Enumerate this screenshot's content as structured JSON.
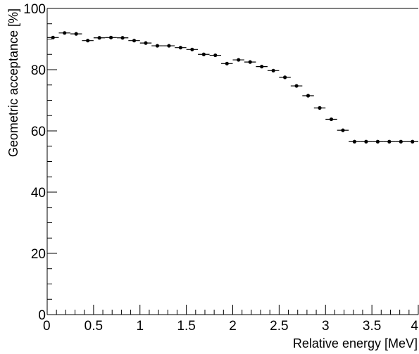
{
  "chart_data": {
    "type": "scatter",
    "title": "",
    "xlabel": "Relative energy [MeV]",
    "ylabel": "Geometric acceptance [%]",
    "xlim": [
      0,
      4
    ],
    "ylim": [
      0,
      100
    ],
    "x_ticks": [
      "0",
      "0.5",
      "1",
      "1.5",
      "2",
      "2.5",
      "3",
      "3.5",
      "4"
    ],
    "y_ticks": [
      "0",
      "20",
      "40",
      "60",
      "80",
      "100"
    ],
    "grid": false,
    "legend": "none",
    "bin_width": 0.125,
    "series": [
      {
        "x": [
          0.0625,
          0.1875,
          0.3125,
          0.4375,
          0.5625,
          0.6875,
          0.8125,
          0.9375,
          1.0625,
          1.1875,
          1.3125,
          1.4375,
          1.5625,
          1.6875,
          1.8125,
          1.9375,
          2.0625,
          2.1875,
          2.3125,
          2.4375,
          2.5625,
          2.6875,
          2.8125,
          2.9375,
          3.0625,
          3.1875,
          3.3125,
          3.4375,
          3.5625,
          3.6875,
          3.8125,
          3.9375
        ],
        "y": [
          90.5,
          92.0,
          91.7,
          89.5,
          90.4,
          90.5,
          90.4,
          89.5,
          88.7,
          87.8,
          87.8,
          87.2,
          86.6,
          85.0,
          84.7,
          82.0,
          83.2,
          82.5,
          81.0,
          79.7,
          77.5,
          74.7,
          71.5,
          67.5,
          63.8,
          60.2,
          56.5,
          56.5,
          56.5,
          56.5,
          56.5,
          56.5
        ]
      }
    ],
    "colors": {
      "marker": "#000000",
      "axis": "#000000",
      "background": "#ffffff"
    }
  }
}
